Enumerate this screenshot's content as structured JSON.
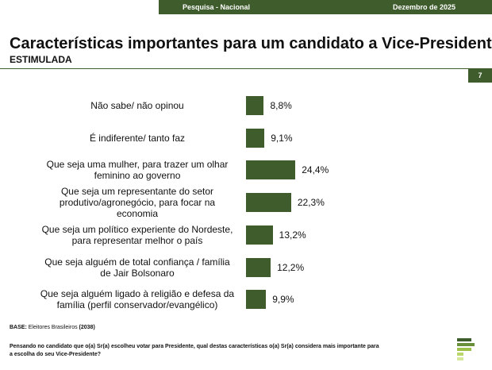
{
  "header": {
    "survey": "Pesquisa - Nacional",
    "date": "Dezembro de 2025",
    "page": "7"
  },
  "chart_data": {
    "type": "bar",
    "orientation": "horizontal",
    "title": "Características importantes para um candidato a Vice-Presidente",
    "subtitle": "ESTIMULADA",
    "categories": [
      "Não sabe/ não opinou",
      "É indiferente/ tanto faz",
      "Que seja uma mulher, para trazer um olhar feminino ao governo",
      "Que seja um representante do setor produtivo/agronegócio, para focar na economia",
      "Que seja um político experiente do Nordeste, para representar melhor o país",
      "Que seja alguém de total confiança / família de Jair Bolsonaro",
      "Que seja alguém ligado à religião e defesa da família (perfil conservador/evangélico)"
    ],
    "values": [
      8.8,
      9.1,
      24.4,
      22.3,
      13.2,
      12.2,
      9.9
    ],
    "value_labels": [
      "8,8%",
      "9,1%",
      "24,4%",
      "22,3%",
      "13,2%",
      "12,2%",
      "9,9%"
    ],
    "color": "#3e5c2c"
  },
  "base": {
    "label": "BASE:",
    "text": "Eleitores Brasileiros",
    "n": "(2038)"
  },
  "question": "Pensando no candidato que o(a) Sr(a) escolheu votar para Presidente, qual destas características o(a) Sr(a) considera mais importante para a escolha do seu Vice-Presidente?"
}
